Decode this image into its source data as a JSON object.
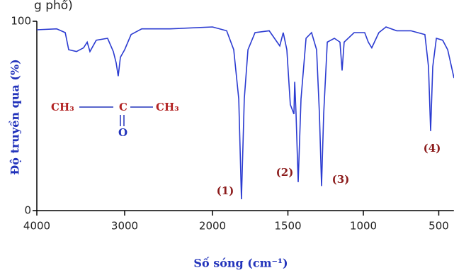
{
  "header_fragment": "g phổ)",
  "chart_data": {
    "type": "line",
    "xlabel": "Số sóng (cm⁻¹)",
    "ylabel": "Độ truyền qua (%)",
    "x": [
      4000,
      3774,
      3677,
      3637,
      3548,
      3468,
      3427,
      3395,
      3323,
      3194,
      3129,
      3097,
      3073,
      3048,
      3000,
      2927,
      2806,
      2484,
      2000,
      1906,
      1859,
      1826,
      1808,
      1789,
      1765,
      1718,
      1624,
      1554,
      1531,
      1507,
      1484,
      1460,
      1455,
      1446,
      1432,
      1413,
      1380,
      1343,
      1310,
      1291,
      1277,
      1263,
      1239,
      1192,
      1155,
      1141,
      1127,
      1061,
      991,
      967,
      944,
      897,
      850,
      779,
      685,
      592,
      568,
      554,
      540,
      516,
      474,
      441,
      399
    ],
    "values": [
      95.5,
      96,
      94,
      85,
      84,
      86,
      89,
      84,
      90,
      91,
      84,
      78,
      71,
      81,
      85,
      93,
      96,
      96,
      97,
      95,
      85,
      59,
      6,
      59,
      85,
      94,
      95,
      87,
      94,
      85,
      56,
      51,
      68,
      51,
      15,
      59,
      91,
      94,
      85,
      51,
      13,
      51,
      89,
      91,
      89,
      74,
      89,
      94,
      94,
      89,
      86,
      94,
      97,
      95,
      95,
      93,
      76,
      42,
      76,
      91,
      90,
      85,
      70
    ],
    "color": "#2b3bd1",
    "xlim": [
      4000,
      400
    ],
    "ylim": [
      0,
      100
    ],
    "xticks": [
      4000,
      3000,
      2000,
      1500,
      1000,
      500
    ],
    "yticks": [
      0,
      100
    ],
    "annotations": [
      "(1)",
      "(2)",
      "(3)",
      "(4)"
    ],
    "molecule": {
      "left": "CH₃",
      "center": "C",
      "right": "CH₃",
      "bottom": "O"
    }
  }
}
